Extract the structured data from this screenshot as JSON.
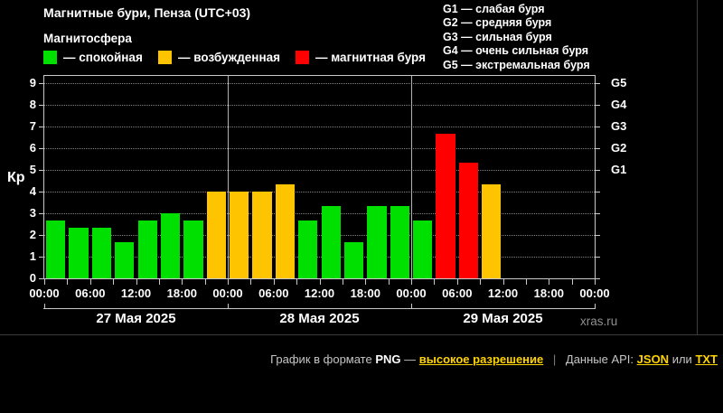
{
  "header": {
    "title": "Магнитные бури, Пенза (UTC+03)",
    "subtitle": "Магнитосфера"
  },
  "legend": {
    "items": [
      {
        "label": "— спокойная",
        "status": "quiet"
      },
      {
        "label": "— возбужденная",
        "status": "excited"
      },
      {
        "label": "— магнитная буря",
        "status": "storm"
      }
    ]
  },
  "g_legend": {
    "items": [
      "G1 — слабая буря",
      "G2 — средняя буря",
      "G3 — сильная буря",
      "G4 — очень сильная буря",
      "G5 — экстремальная буря"
    ]
  },
  "chart_data": {
    "type": "bar",
    "title": "Магнитные бури, Пенза (UTC+03)",
    "ylabel": "Кр",
    "ylim": [
      0,
      9
    ],
    "y_ticks": [
      0,
      1,
      2,
      3,
      4,
      5,
      6,
      7,
      8,
      9
    ],
    "grid": "dotted horizontal line at every integer Kp from 1 to 9",
    "hours_per_bar": 3,
    "slots_per_day": 8,
    "time_tick_labels": [
      "00:00",
      "06:00",
      "12:00",
      "18:00",
      "00:00",
      "06:00",
      "12:00",
      "18:00",
      "00:00",
      "06:00",
      "12:00",
      "18:00",
      "00:00"
    ],
    "right_axis": {
      "labels": [
        {
          "kp": 9,
          "label": "G5"
        },
        {
          "kp": 8,
          "label": "G4"
        },
        {
          "kp": 7,
          "label": "G3"
        },
        {
          "kp": 6,
          "label": "G2"
        },
        {
          "kp": 5,
          "label": "G1"
        }
      ]
    },
    "days": [
      {
        "date": "27 Мая 2025",
        "values": [
          2.67,
          2.33,
          2.33,
          1.67,
          2.67,
          3.0,
          2.67,
          4.0
        ],
        "statuses": [
          "quiet",
          "quiet",
          "quiet",
          "quiet",
          "quiet",
          "quiet",
          "quiet",
          "excited"
        ]
      },
      {
        "date": "28 Мая 2025",
        "values": [
          4.0,
          4.0,
          4.33,
          2.67,
          3.33,
          1.67,
          3.33,
          3.33
        ],
        "statuses": [
          "excited",
          "excited",
          "excited",
          "quiet",
          "quiet",
          "quiet",
          "quiet",
          "quiet"
        ]
      },
      {
        "date": "29 Мая 2025",
        "values": [
          2.67,
          6.67,
          5.33,
          4.33,
          null,
          null,
          null,
          null
        ],
        "statuses": [
          "quiet",
          "storm",
          "storm",
          "excited",
          null,
          null,
          null,
          null
        ]
      }
    ],
    "status_colors": {
      "quiet": "#00E000",
      "excited": "#FFC400",
      "storm": "#FF0000"
    }
  },
  "watermark": "xras.ru",
  "footer": {
    "prefix": "График в формате",
    "format_label": "PNG",
    "dash": "—",
    "hires_link": "высокое разрешение",
    "separator": "|",
    "api_label": "Данные API:",
    "json_link": "JSON",
    "or_label": "или",
    "txt_link": "TXT"
  }
}
